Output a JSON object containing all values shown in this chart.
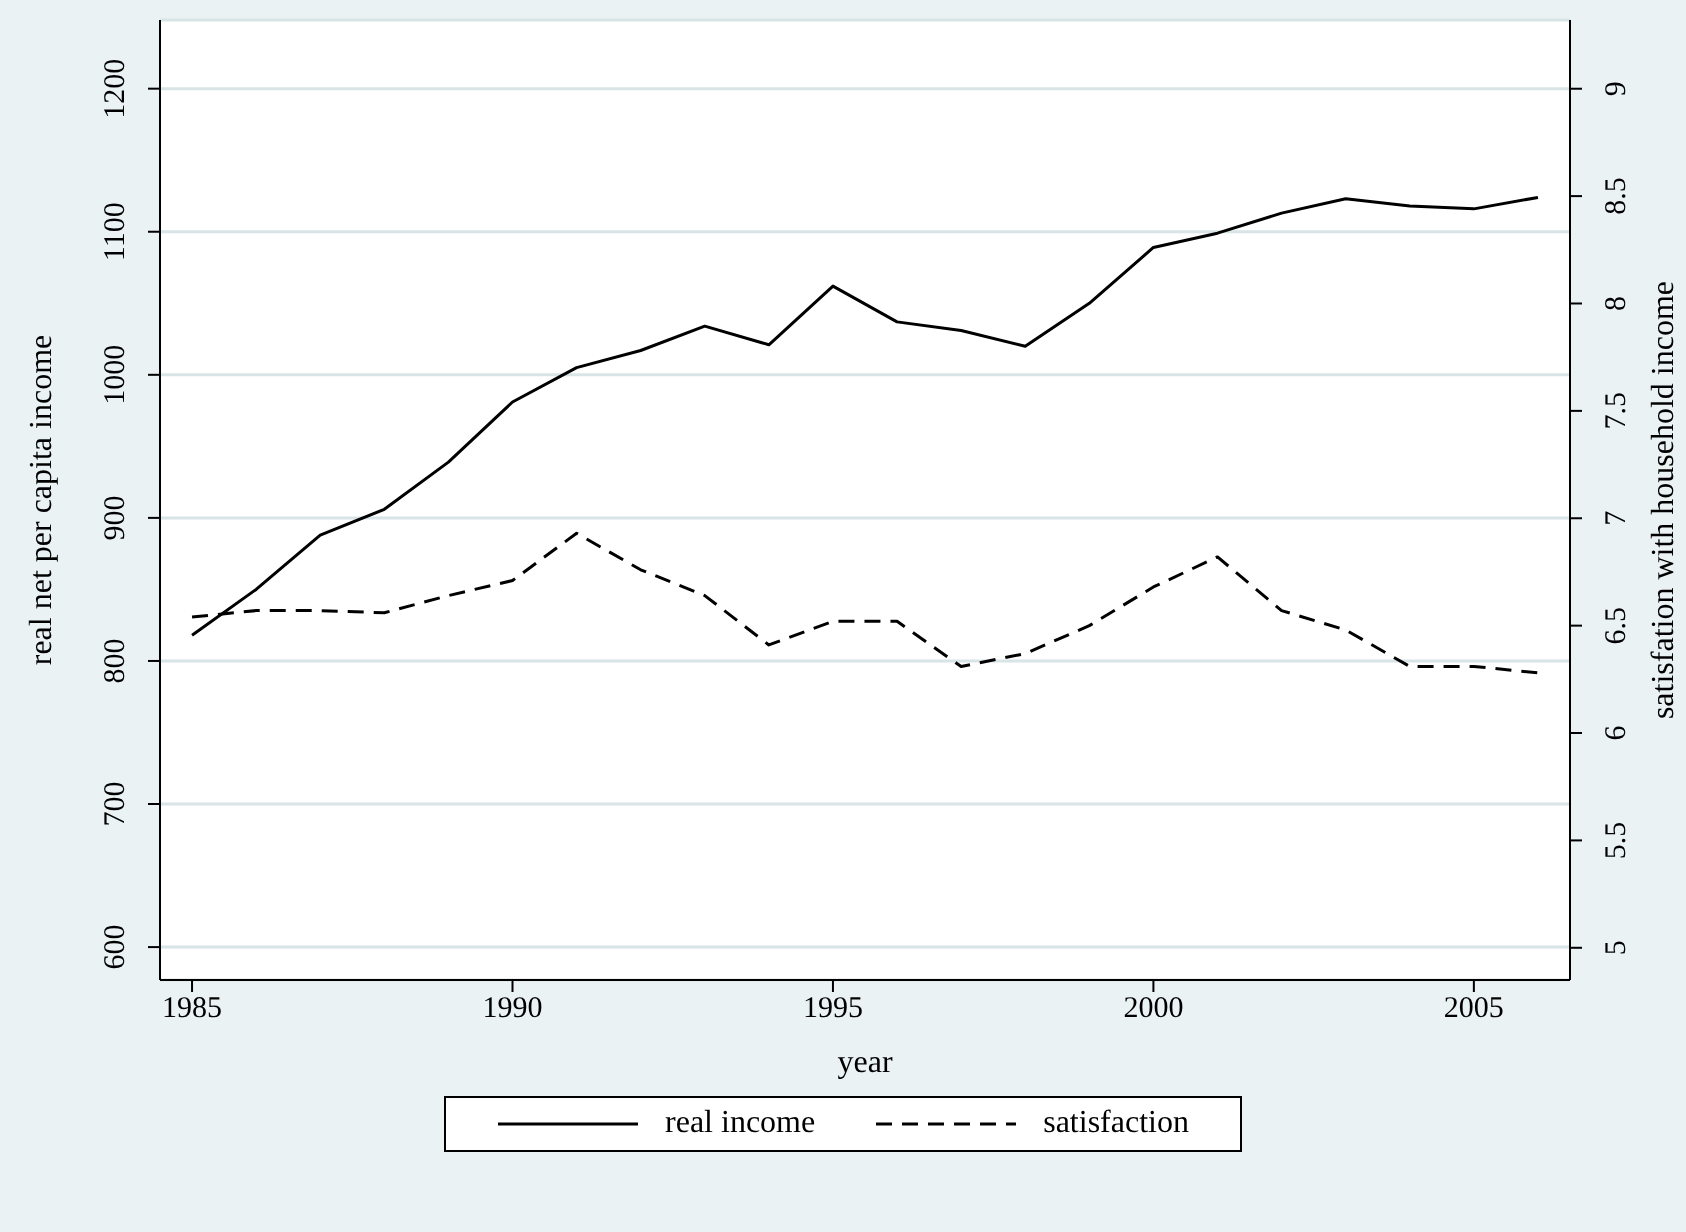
{
  "chart_data": {
    "type": "line",
    "xlabel": "year",
    "ylabel": "real net per capita income",
    "y2label": "satisfation with household income",
    "x": [
      1985,
      1986,
      1987,
      1988,
      1989,
      1990,
      1991,
      1992,
      1993,
      1994,
      1995,
      1996,
      1997,
      1998,
      1999,
      2000,
      2001,
      2002,
      2003,
      2004,
      2005,
      2006
    ],
    "series": [
      {
        "name": "real income",
        "color": "#000000",
        "line_style": "solid",
        "values": [
          818,
          850,
          888,
          906,
          939,
          981,
          1005,
          1017,
          1034,
          1021,
          1062,
          1037,
          1031,
          1020,
          1050,
          1089,
          1099,
          1113,
          1123,
          1118,
          1116,
          1124
        ]
      },
      {
        "name": "satisfaction",
        "color": "#000000",
        "line_style": "dashed",
        "axis": "y2",
        "values": [
          6.54,
          6.57,
          6.57,
          6.56,
          6.64,
          6.71,
          6.93,
          6.76,
          6.64,
          6.41,
          6.52,
          6.52,
          6.31,
          6.37,
          6.5,
          6.68,
          6.82,
          6.57,
          6.48,
          6.31,
          6.31,
          6.28
        ]
      }
    ],
    "xlim": [
      1984.5,
      2006.5
    ],
    "xticks": [
      1985,
      1990,
      1995,
      2000,
      2005
    ],
    "ylim": [
      577,
      1248
    ],
    "yticks": [
      600,
      700,
      800,
      900,
      1000,
      1100,
      1200
    ],
    "y2lim": [
      4.85,
      9.32
    ],
    "y2ticks": [
      5,
      5.5,
      6,
      6.5,
      7,
      7.5,
      8,
      8.5,
      9
    ],
    "grid": "y",
    "legend": "bottom",
    "marker": "none"
  }
}
